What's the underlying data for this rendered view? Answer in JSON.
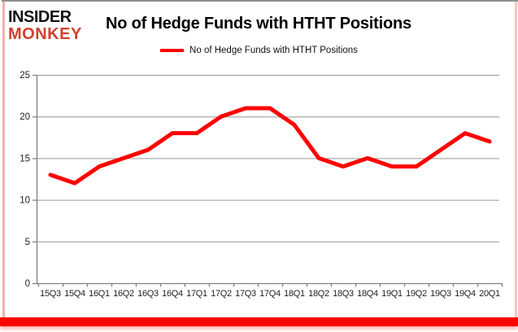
{
  "brand": {
    "line1": "INSIDER",
    "line2": "MONKEY"
  },
  "title": "No of Hedge Funds with HTHT Positions",
  "legend": {
    "label": "No of Hedge Funds with HTHT Positions"
  },
  "colors": {
    "line": "#ff0000",
    "logo_red": "#d2402e",
    "grid": "#969696",
    "axis": "#7f7f7f",
    "tick_text": "#1f1f1f",
    "bottom_bar": "#fa0500"
  },
  "chart_data": {
    "type": "line",
    "title": "No of Hedge Funds with HTHT Positions",
    "categories": [
      "15Q3",
      "15Q4",
      "16Q1",
      "16Q2",
      "16Q3",
      "16Q4",
      "17Q1",
      "17Q2",
      "17Q3",
      "17Q4",
      "18Q1",
      "18Q2",
      "18Q3",
      "18Q4",
      "19Q1",
      "19Q2",
      "19Q3",
      "19Q4",
      "20Q1"
    ],
    "series": [
      {
        "name": "No of Hedge Funds with HTHT Positions",
        "color": "#ff0000",
        "values": [
          13,
          12,
          14,
          15,
          16,
          18,
          18,
          20,
          21,
          21,
          19,
          15,
          14,
          15,
          14,
          14,
          16,
          18,
          17
        ]
      }
    ],
    "ylim": [
      0,
      25
    ],
    "yticks": [
      0,
      5,
      10,
      15,
      20,
      25
    ],
    "grid": true,
    "legend_position": "top"
  }
}
